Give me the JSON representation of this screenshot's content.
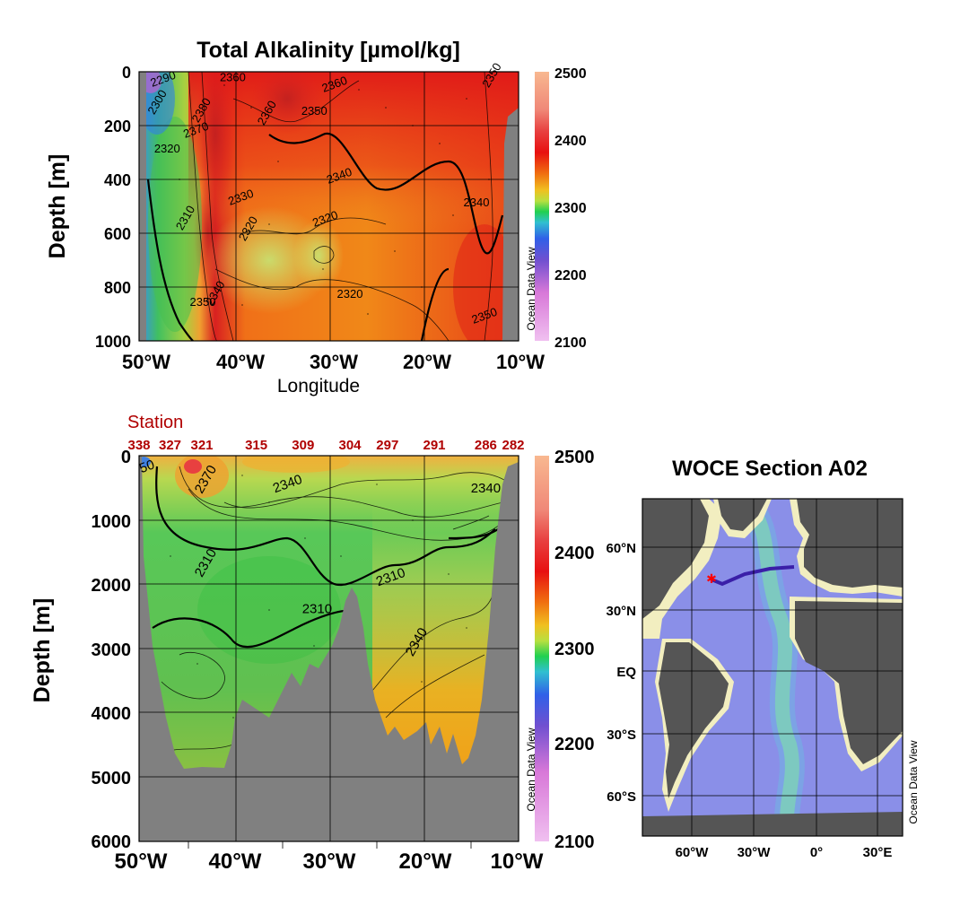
{
  "colors": {
    "land": "#808080",
    "station_label": "#b00000",
    "track": "#3a1fa8",
    "start_marker": "#ff0000",
    "ocean_deep": "#8a8fe8",
    "ocean_shelf": "#8cd8a0",
    "map_land": "#555555",
    "coast_plain": "#f2eec0"
  },
  "watermark": "Ocean Data View",
  "chart_data": [
    {
      "type": "heatmap",
      "title": "Total Alkalinity [µmol/kg]",
      "xlabel": "Longitude",
      "ylabel": "Depth [m]",
      "xlim": [
        -50.5,
        -10
      ],
      "ylim": [
        1000,
        0
      ],
      "x_ticks": [
        "50°W",
        "40°W",
        "30°W",
        "20°W",
        "10°W"
      ],
      "y_ticks": [
        "0",
        "200",
        "400",
        "600",
        "800",
        "1000"
      ],
      "grid": true,
      "colorbar": {
        "min": 2100,
        "max": 2500,
        "ticks": [
          "2500",
          "2400",
          "2300",
          "2200",
          "2100"
        ]
      },
      "contour_labels": [
        {
          "text": "2380",
          "x": -43.5,
          "y": 150
        },
        {
          "text": "2370",
          "x": -44.3,
          "y": 230
        },
        {
          "text": "2360",
          "x": -40.5,
          "y": 35
        },
        {
          "text": "2360",
          "x": -36.5,
          "y": 160
        },
        {
          "text": "2360",
          "x": -29.5,
          "y": 60
        },
        {
          "text": "2350",
          "x": -31.8,
          "y": 160
        },
        {
          "text": "2350",
          "x": -12.5,
          "y": 20
        },
        {
          "text": "2340",
          "x": -29,
          "y": 400
        },
        {
          "text": "2340",
          "x": -14.5,
          "y": 500
        },
        {
          "text": "2340",
          "x": -42,
          "y": 830
        },
        {
          "text": "2330",
          "x": -39.5,
          "y": 480
        },
        {
          "text": "2320",
          "x": -47.5,
          "y": 300
        },
        {
          "text": "2320",
          "x": -38.5,
          "y": 590
        },
        {
          "text": "2320",
          "x": -30.5,
          "y": 560
        },
        {
          "text": "2320",
          "x": -28,
          "y": 840
        },
        {
          "text": "2310",
          "x": -45.2,
          "y": 550
        },
        {
          "text": "2350",
          "x": -13.5,
          "y": 920
        },
        {
          "text": "2350",
          "x": -43.7,
          "y": 870
        },
        {
          "text": "2300",
          "x": -48.2,
          "y": 120
        },
        {
          "text": "2290",
          "x": -47.8,
          "y": 40
        }
      ]
    },
    {
      "type": "heatmap",
      "station_label": "Station",
      "stations": [
        {
          "label": "338",
          "x": -50.5
        },
        {
          "label": "327",
          "x": -47.2
        },
        {
          "label": "321",
          "x": -43.8
        },
        {
          "label": "315",
          "x": -38
        },
        {
          "label": "309",
          "x": -33
        },
        {
          "label": "304",
          "x": -28
        },
        {
          "label": "297",
          "x": -24
        },
        {
          "label": "291",
          "x": -19
        },
        {
          "label": "286",
          "x": -13.5
        },
        {
          "label": "282",
          "x": -8.5
        }
      ],
      "ylabel": "Depth [m]",
      "xlim": [
        -50.5,
        -10
      ],
      "ylim": [
        6000,
        0
      ],
      "x_ticks": [
        "50°W",
        "40°W",
        "30°W",
        "20°W",
        "10°W"
      ],
      "y_ticks": [
        "0",
        "1000",
        "2000",
        "3000",
        "4000",
        "5000",
        "6000"
      ],
      "grid": true,
      "colorbar": {
        "min": 2100,
        "max": 2500,
        "ticks": [
          "2500",
          "2400",
          "2300",
          "2200",
          "2100"
        ]
      },
      "contour_labels": [
        {
          "text": "2370",
          "x": -43,
          "y": 400
        },
        {
          "text": "2340",
          "x": -34.5,
          "y": 500
        },
        {
          "text": "2340",
          "x": -13.5,
          "y": 570
        },
        {
          "text": "2310",
          "x": -43,
          "y": 1700
        },
        {
          "text": "2310",
          "x": -23.5,
          "y": 1950
        },
        {
          "text": "2310",
          "x": -31.5,
          "y": 2450
        },
        {
          "text": "2340",
          "x": -20.5,
          "y": 2930
        },
        {
          "text": "50",
          "x": -49.5,
          "y": 230
        }
      ]
    },
    {
      "type": "map",
      "title": "WOCE Section A02",
      "lon_ticks": [
        "60°W",
        "30°W",
        "0°",
        "30°E"
      ],
      "lat_ticks": [
        "60°N",
        "30°N",
        "EQ",
        "30°S",
        "60°S"
      ]
    }
  ]
}
